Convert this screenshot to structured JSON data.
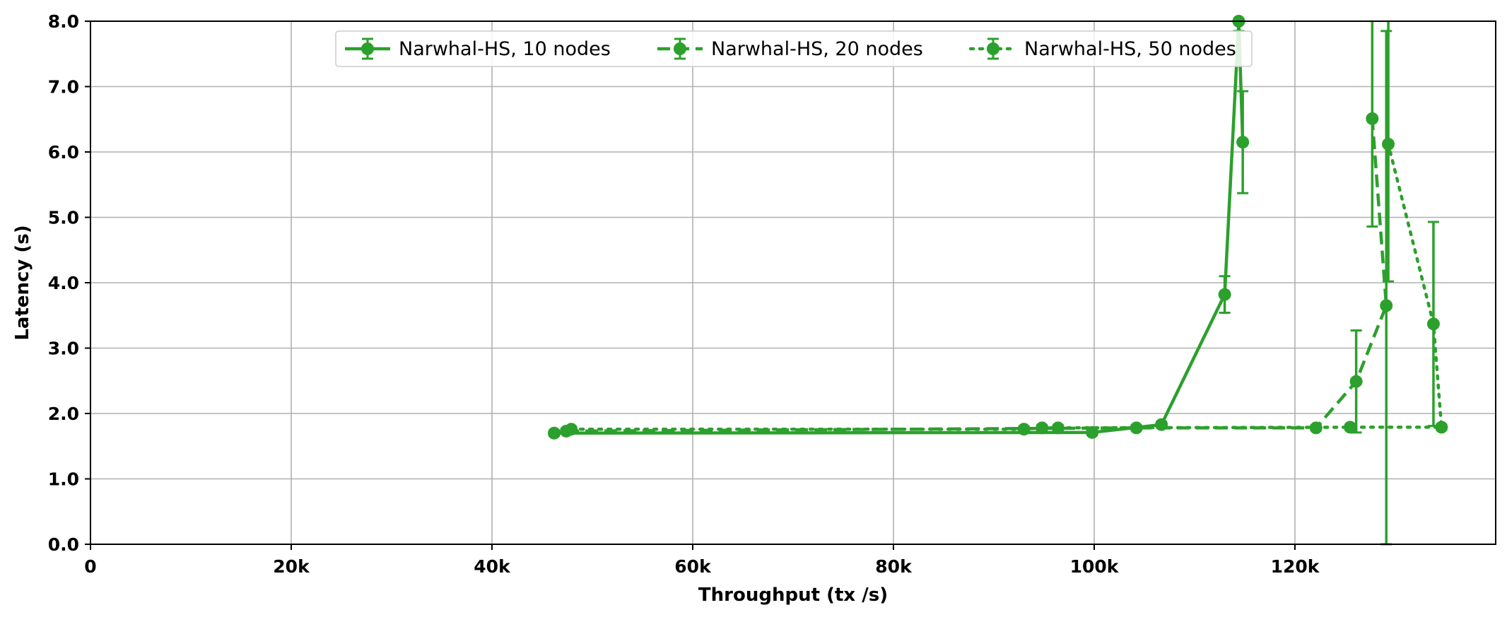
{
  "chart_data": {
    "type": "line",
    "title": "",
    "xlabel": "Throughput (tx /s)",
    "ylabel": "Latency (s)",
    "xlim": [
      0,
      140000
    ],
    "ylim": [
      0,
      8
    ],
    "x_ticks": [
      0,
      20000,
      40000,
      60000,
      80000,
      100000,
      120000
    ],
    "x_tick_labels": [
      "0",
      "20k",
      "40k",
      "60k",
      "80k",
      "100k",
      "120k"
    ],
    "y_ticks": [
      0,
      1,
      2,
      3,
      4,
      5,
      6,
      7,
      8
    ],
    "y_tick_labels": [
      "0.0",
      "1.0",
      "2.0",
      "3.0",
      "4.0",
      "5.0",
      "6.0",
      "7.0",
      "8.0"
    ],
    "grid": true,
    "legend_position": "top-center",
    "series": [
      {
        "name": "Narwhal-HS, 10 nodes",
        "color": "#2ca02c",
        "line_style": "solid",
        "marker": "circle",
        "points": [
          {
            "x": 46200,
            "y": 1.7,
            "err": 0.04
          },
          {
            "x": 99800,
            "y": 1.71,
            "err": 0.04
          },
          {
            "x": 106700,
            "y": 1.83,
            "err": 0.04
          },
          {
            "x": 113000,
            "y": 3.82,
            "err": 0.28
          },
          {
            "x": 114400,
            "y": 8.0,
            "err": 0.15
          },
          {
            "x": 114800,
            "y": 6.15,
            "err": 0.78
          }
        ]
      },
      {
        "name": "Narwhal-HS, 20 nodes",
        "color": "#2ca02c",
        "line_style": "dashed",
        "marker": "circle",
        "points": [
          {
            "x": 47400,
            "y": 1.73,
            "err": 0.04
          },
          {
            "x": 104200,
            "y": 1.78,
            "err": 0.04
          },
          {
            "x": 122100,
            "y": 1.78,
            "err": 0.04
          },
          {
            "x": 126100,
            "y": 2.49,
            "err": 0.78
          },
          {
            "x": 129100,
            "y": 3.65,
            "err": 4.2
          },
          {
            "x": 127700,
            "y": 6.51,
            "err": 1.65
          }
        ]
      },
      {
        "name": "Narwhal-HS, 50 nodes",
        "color": "#2ca02c",
        "line_style": "dotted",
        "marker": "circle",
        "points": [
          {
            "x": 47900,
            "y": 1.76,
            "err": 0.04
          },
          {
            "x": 93000,
            "y": 1.76,
            "err": 0.04
          },
          {
            "x": 94800,
            "y": 1.78,
            "err": 0.04
          },
          {
            "x": 96400,
            "y": 1.78,
            "err": 0.04
          },
          {
            "x": 125500,
            "y": 1.79,
            "err": 0.04
          },
          {
            "x": 134600,
            "y": 1.79,
            "err": 0.04
          },
          {
            "x": 133800,
            "y": 3.37,
            "err": 1.56
          },
          {
            "x": 129300,
            "y": 6.12,
            "err": 2.1
          }
        ]
      }
    ]
  }
}
